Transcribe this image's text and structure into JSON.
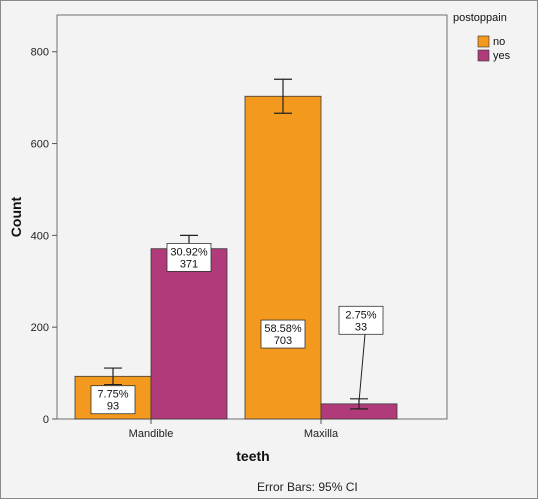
{
  "chart_data": {
    "type": "bar",
    "xlabel": "teeth",
    "ylabel": "Count",
    "categories": [
      "Mandible",
      "Maxilla"
    ],
    "ylim": [
      0,
      880
    ],
    "yticks": [
      0,
      200,
      400,
      600,
      800
    ],
    "grid": false,
    "legend": {
      "title": "postoppain",
      "placement": "top-right",
      "entries": [
        "no",
        "yes"
      ]
    },
    "series": [
      {
        "name": "no",
        "color": "#f39a1e",
        "values": [
          93,
          703
        ],
        "ci_low": [
          75,
          666
        ],
        "ci_high": [
          111,
          740
        ],
        "labels": [
          [
            "7.75%",
            "93"
          ],
          [
            "58.58%",
            "703"
          ]
        ]
      },
      {
        "name": "yes",
        "color": "#b03a7a",
        "values": [
          371,
          33
        ],
        "ci_low": [
          342,
          22
        ],
        "ci_high": [
          400,
          44
        ],
        "labels": [
          [
            "30.92%",
            "371"
          ],
          [
            "2.75%",
            "33"
          ]
        ]
      }
    ],
    "footnote": "Error Bars: 95% CI"
  }
}
